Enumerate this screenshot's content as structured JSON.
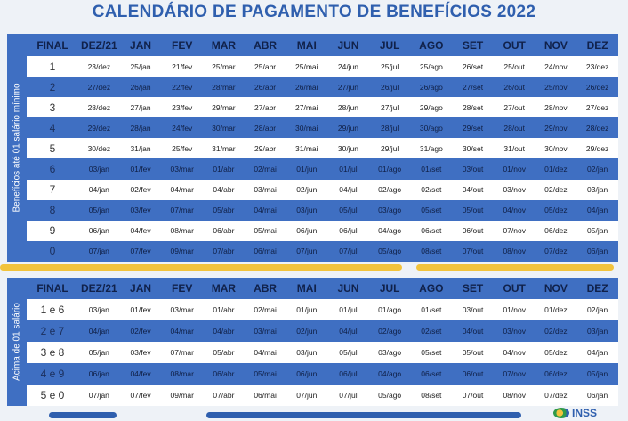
{
  "title": "CALENDÁRIO DE PAGAMENTO DE BENEFÍCIOS 2022",
  "section1": {
    "side_label": "Benefícios até 01 salário mínimo",
    "headers": [
      "FINAL",
      "DEZ/21",
      "JAN",
      "FEV",
      "MAR",
      "ABR",
      "MAI",
      "JUN",
      "JUL",
      "AGO",
      "SET",
      "OUT",
      "NOV",
      "DEZ"
    ],
    "rows": [
      [
        "1",
        "23/dez",
        "25/jan",
        "21/fev",
        "25/mar",
        "25/abr",
        "25/mai",
        "24/jun",
        "25/jul",
        "25/ago",
        "26/set",
        "25/out",
        "24/nov",
        "23/dez"
      ],
      [
        "2",
        "27/dez",
        "26/jan",
        "22/fev",
        "28/mar",
        "26/abr",
        "26/mai",
        "27/jun",
        "26/jul",
        "26/ago",
        "27/set",
        "26/out",
        "25/nov",
        "26/dez"
      ],
      [
        "3",
        "28/dez",
        "27/jan",
        "23/fev",
        "29/mar",
        "27/abr",
        "27/mai",
        "28/jun",
        "27/jul",
        "29/ago",
        "28/set",
        "27/out",
        "28/nov",
        "27/dez"
      ],
      [
        "4",
        "29/dez",
        "28/jan",
        "24/fev",
        "30/mar",
        "28/abr",
        "30/mai",
        "29/jun",
        "28/jul",
        "30/ago",
        "29/set",
        "28/out",
        "29/nov",
        "28/dez"
      ],
      [
        "5",
        "30/dez",
        "31/jan",
        "25/fev",
        "31/mar",
        "29/abr",
        "31/mai",
        "30/jun",
        "29/jul",
        "31/ago",
        "30/set",
        "31/out",
        "30/nov",
        "29/dez"
      ],
      [
        "6",
        "03/jan",
        "01/fev",
        "03/mar",
        "01/abr",
        "02/mai",
        "01/jun",
        "01/jul",
        "01/ago",
        "01/set",
        "03/out",
        "01/nov",
        "01/dez",
        "02/jan"
      ],
      [
        "7",
        "04/jan",
        "02/fev",
        "04/mar",
        "04/abr",
        "03/mai",
        "02/jun",
        "04/jul",
        "02/ago",
        "02/set",
        "04/out",
        "03/nov",
        "02/dez",
        "03/jan"
      ],
      [
        "8",
        "05/jan",
        "03/fev",
        "07/mar",
        "05/abr",
        "04/mai",
        "03/jun",
        "05/jul",
        "03/ago",
        "05/set",
        "05/out",
        "04/nov",
        "05/dez",
        "04/jan"
      ],
      [
        "9",
        "06/jan",
        "04/fev",
        "08/mar",
        "06/abr",
        "05/mai",
        "06/jun",
        "06/jul",
        "04/ago",
        "06/set",
        "06/out",
        "07/nov",
        "06/dez",
        "05/jan"
      ],
      [
        "0",
        "07/jan",
        "07/fev",
        "09/mar",
        "07/abr",
        "06/mai",
        "07/jun",
        "07/jul",
        "05/ago",
        "08/set",
        "07/out",
        "08/nov",
        "07/dez",
        "06/jan"
      ]
    ]
  },
  "section2": {
    "side_label": "Acima de 01 salário",
    "headers": [
      "FINAL",
      "DEZ/21",
      "JAN",
      "FEV",
      "MAR",
      "ABR",
      "MAI",
      "JUN",
      "JUL",
      "AGO",
      "SET",
      "OUT",
      "NOV",
      "DEZ"
    ],
    "rows": [
      [
        "1 e 6",
        "03/jan",
        "01/fev",
        "03/mar",
        "01/abr",
        "02/mai",
        "01/jun",
        "01/jul",
        "01/ago",
        "01/set",
        "03/out",
        "01/nov",
        "01/dez",
        "02/jan"
      ],
      [
        "2 e 7",
        "04/jan",
        "02/fev",
        "04/mar",
        "04/abr",
        "03/mai",
        "02/jun",
        "04/jul",
        "02/ago",
        "02/set",
        "04/out",
        "03/nov",
        "02/dez",
        "03/jan"
      ],
      [
        "3 e 8",
        "05/jan",
        "03/fev",
        "07/mar",
        "05/abr",
        "04/mai",
        "03/jun",
        "05/jul",
        "03/ago",
        "05/set",
        "05/out",
        "04/nov",
        "05/dez",
        "04/jan"
      ],
      [
        "4 e 9",
        "06/jan",
        "04/fev",
        "08/mar",
        "06/abr",
        "05/mai",
        "06/jun",
        "06/jul",
        "04/ago",
        "06/set",
        "06/out",
        "07/nov",
        "06/dez",
        "05/jan"
      ],
      [
        "5 e 0",
        "07/jan",
        "07/fev",
        "09/mar",
        "07/abr",
        "06/mai",
        "07/jun",
        "07/jul",
        "05/ago",
        "08/set",
        "07/out",
        "08/nov",
        "07/dez",
        "06/jan"
      ]
    ]
  },
  "logo_text": "INSS",
  "colors": {
    "primary_blue": "#3f6fc2",
    "title_blue": "#2f5fae",
    "accent_yellow": "#f2c33c"
  }
}
